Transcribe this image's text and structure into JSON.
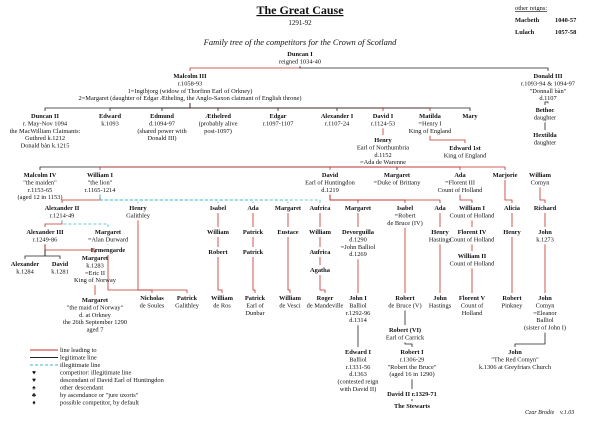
{
  "header": {
    "title": "The Great Cause",
    "years": "1291-92",
    "subtitle": "Family tree of the competitors for the Crown of Scotland"
  },
  "other_reigns": {
    "heading": "other reigns:",
    "reigns": [
      {
        "name": "Macbeth",
        "years": "1040-57"
      },
      {
        "name": "Lulach",
        "years": "1057-58"
      }
    ]
  },
  "nodes": [
    {
      "lines": [
        "Duncan I",
        "reigned 1034-40"
      ]
    },
    {
      "lines": [
        "Malcolm III",
        "r.1058-93",
        "1=Ingibjorg (widow of Thorfinn Earl of Orkney)",
        "2=Margaret (daughter of Edgar Ætheling, the Anglo-Saxon claimant of English throne)"
      ]
    },
    {
      "lines": [
        "Donald III",
        "r.1093-94 & 1094-97",
        "\"Donnall bàn\"",
        "d.1107"
      ]
    },
    {
      "lines": [
        "Duncan II",
        "r. May-Nov 1094",
        "the MacWilliam Claimants:",
        "Guthred k.1212",
        "Donald bàn k.1215"
      ]
    },
    {
      "lines": [
        "Edward",
        "k.1093"
      ]
    },
    {
      "lines": [
        "Edmund",
        "d.1094-97",
        "(shared power with",
        "Donald III)"
      ]
    },
    {
      "lines": [
        "Æthelred",
        "(probably alive",
        "post-1097)"
      ]
    },
    {
      "lines": [
        "Edgar",
        "r.1097-1107"
      ]
    },
    {
      "lines": [
        "Alexander I",
        "r.1107-24"
      ]
    },
    {
      "lines": [
        "David I",
        "r.1124-53"
      ]
    },
    {
      "lines": [
        "Matilda",
        "=Henry I",
        "King of England"
      ]
    },
    {
      "lines": [
        "Mary"
      ]
    },
    {
      "lines": [
        "Bethoc",
        "daughter"
      ]
    },
    {
      "lines": [
        "Hextilda",
        "daughter"
      ]
    },
    {
      "lines": [
        "Henry",
        "Earl of Northumbria",
        "d.1152",
        "=Ada de Warenne"
      ]
    },
    {
      "lines": [
        "Edward 1st",
        "King of England"
      ]
    },
    {
      "lines": [
        "Malcolm IV",
        "\"the maiden\"",
        "r.1153-65",
        "(aged 12 in 1153)"
      ]
    },
    {
      "lines": [
        "William I",
        "\"the lion\"",
        "r.1165-1214"
      ]
    },
    {
      "lines": [
        "David",
        "Earl of Huntingdon",
        "d.1219"
      ]
    },
    {
      "lines": [
        "Margaret",
        "=Duke of Brittany"
      ]
    },
    {
      "lines": [
        "Ada",
        "=Florent III",
        "Count of Holland"
      ]
    },
    {
      "lines": [
        "Marjorie"
      ]
    },
    {
      "lines": [
        "William",
        "Comyn"
      ]
    },
    {
      "lines": [
        "Alexander II",
        "r.1214-49"
      ]
    },
    {
      "lines": [
        "Henry",
        "Galithley"
      ]
    },
    {
      "lines": [
        "Isabel"
      ]
    },
    {
      "lines": [
        "Ada"
      ]
    },
    {
      "lines": [
        "Margaret"
      ]
    },
    {
      "lines": [
        "Aufrica"
      ]
    },
    {
      "lines": [
        "Margaret"
      ]
    },
    {
      "lines": [
        "Isabel",
        "=Robert",
        "de Bruce (IV)"
      ]
    },
    {
      "lines": [
        "Ada"
      ]
    },
    {
      "lines": [
        "William I",
        "Count of Holland"
      ]
    },
    {
      "lines": [
        "Alicia"
      ]
    },
    {
      "lines": [
        "Richard"
      ]
    },
    {
      "lines": [
        "Alexander III",
        "r.1249-86"
      ]
    },
    {
      "lines": [
        "Margaret",
        "=Alan Durward"
      ]
    },
    {
      "lines": [
        "William"
      ]
    },
    {
      "lines": [
        "Patrick"
      ]
    },
    {
      "lines": [
        "Eustace"
      ]
    },
    {
      "lines": [
        "William"
      ]
    },
    {
      "lines": [
        "Devorguilla",
        "d.1290",
        "=John Balliol",
        "d.1269"
      ]
    },
    {
      "lines": [
        "Henry",
        "Hastings"
      ]
    },
    {
      "lines": [
        "Florent IV",
        "Count of Holland"
      ]
    },
    {
      "lines": [
        "Henry"
      ]
    },
    {
      "lines": [
        "John",
        "k.1273"
      ]
    },
    {
      "lines": [
        "Ermengarde"
      ]
    },
    {
      "lines": [
        "Robert"
      ]
    },
    {
      "lines": [
        "Patrick"
      ]
    },
    {
      "lines": [
        "Aufrica"
      ]
    },
    {
      "lines": [
        "Agatha"
      ]
    },
    {
      "lines": [
        "William II",
        "Count of Holland"
      ]
    },
    {
      "lines": [
        "Alexander",
        "k.1284"
      ]
    },
    {
      "lines": [
        "David",
        "k.1281"
      ]
    },
    {
      "lines": [
        "Margaret",
        "k.1283",
        "=Eric II",
        "King of Norway"
      ]
    },
    {
      "lines": [
        "Margaret",
        "\"the maid of Norway\"",
        "d. at Orkney",
        "the 26th September 1290",
        "aged 7"
      ]
    },
    {
      "lines": [
        "Nicholas",
        "de Soules"
      ]
    },
    {
      "lines": [
        "Patrick",
        "Galithley"
      ]
    },
    {
      "lines": [
        "William",
        "de Ros"
      ]
    },
    {
      "lines": [
        "Patrick",
        "Earl of",
        "Dunbar"
      ]
    },
    {
      "lines": [
        "William",
        "de Vesci"
      ]
    },
    {
      "lines": [
        "Roger",
        "de Mandeville"
      ]
    },
    {
      "lines": [
        "John I",
        "Balliol",
        "r.1292-96",
        "d.1314"
      ]
    },
    {
      "lines": [
        "Robert",
        "de Bruce (V)"
      ]
    },
    {
      "lines": [
        "John",
        "Hastings"
      ]
    },
    {
      "lines": [
        "Florent V",
        "Count of",
        "Holland"
      ]
    },
    {
      "lines": [
        "Robert",
        "Pinkney"
      ]
    },
    {
      "lines": [
        "John",
        "Comyn",
        "=Eleanor",
        "Balliol",
        "(sister of John I)"
      ]
    },
    {
      "lines": [
        "Robert (VI)",
        "Earl of Carrick"
      ]
    },
    {
      "lines": [
        "Edward I",
        "Balliol",
        "r.1331-56",
        "d.1363",
        "(contested reign",
        "with David II)"
      ]
    },
    {
      "lines": [
        "Robert I",
        "r.1306-29",
        "\"Robert the Bruce\"",
        "(aged 16 in 1290)"
      ]
    },
    {
      "lines": [
        "John",
        "\"The Red Comyn\"",
        "k.1306 at Greyfriars Church"
      ]
    },
    {
      "lines": [
        "David II r.1329-71"
      ]
    },
    {
      "lines": [
        "The Stewarts"
      ]
    }
  ],
  "legend": [
    {
      "label": "line leading to"
    },
    {
      "label": "legitimate line"
    },
    {
      "label": "illegitimate line"
    },
    {
      "symbol": "♥",
      "label": "competitor: illegitimate line"
    },
    {
      "symbol": "♥",
      "label": "descendant of David Earl of Huntingdon"
    },
    {
      "symbol": "♠",
      "label": "other descendant"
    },
    {
      "symbol": "♣",
      "label": "by ascendance or \"jure uxoris\""
    },
    {
      "symbol": "♦",
      "label": "possible competitor, by default"
    }
  ],
  "credit": {
    "author": "Czar Brodie",
    "version": "v.1.03"
  }
}
